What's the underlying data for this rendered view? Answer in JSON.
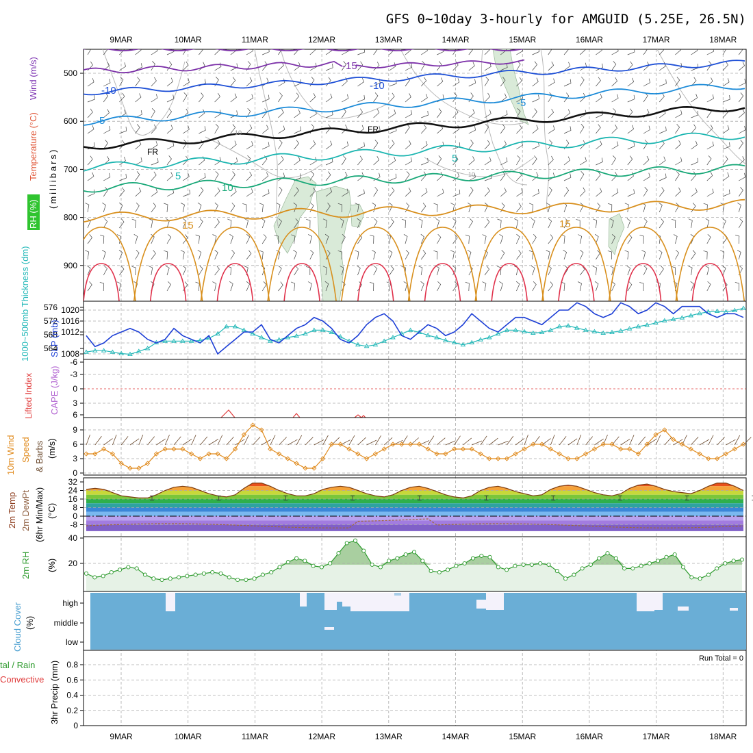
{
  "title": "GFS 0~10day 3-hourly for AMGUID (5.25E, 26.5N)",
  "dates": [
    "9MAR",
    "10MAR",
    "11MAR",
    "12MAR",
    "13MAR",
    "14MAR",
    "15MAR",
    "16MAR",
    "17MAR",
    "18MAR"
  ],
  "colors": {
    "slp": "#1d3fd6",
    "thickness": "#22b8b8",
    "lifted": "#e03a3a",
    "cape": "#b060d0",
    "wind": "#e08a1c",
    "rh2m": "#2c9a2c",
    "cloud": "#6aaed6",
    "cloud_gap": "#f4f2fb",
    "barbs": "#6b4a2e",
    "grid": "#aaaaaa"
  },
  "panels": {
    "upper": {
      "label_rh": "RH (%)",
      "label_temp": "Temperature (°C)",
      "label_wind": "Wind (m/s)",
      "label_mb": "(millibars)",
      "yticks": [
        "500",
        "600",
        "700",
        "800",
        "900"
      ],
      "contour_labels": [
        "-15",
        "-10",
        "-10",
        "-5",
        "-5",
        "FR",
        "FR",
        "5",
        "5",
        "10",
        "15",
        "15",
        "10",
        "10"
      ]
    },
    "slp": {
      "label_left": "1000~500mb Thickness (dm)",
      "label_right": "SLP (mb)",
      "left_ticks": [
        "576",
        "572",
        "568",
        "564"
      ],
      "right_ticks": [
        "1020",
        "1016",
        "1012",
        "1008"
      ]
    },
    "cape": {
      "label_left": "Lifted Index",
      "label_right": "CAPE (J/kg)",
      "ticks": [
        "-6",
        "-3",
        "0",
        "3",
        "6"
      ]
    },
    "wind10": {
      "label_title": "10m Wind",
      "label_speed": "Speed",
      "label_barbs": "& Barbs",
      "unit": "(m/s)",
      "ticks": [
        "9",
        "6",
        "3",
        "0"
      ]
    },
    "temp2m": {
      "label_temp": "2m Temp",
      "label_dew": "2m DewPt",
      "label_minmax": "(6hr Min/Max)",
      "unit": "(°C)",
      "ticks": [
        "32",
        "24",
        "16",
        "8",
        "0",
        "-8"
      ]
    },
    "rh2m": {
      "label": "2m RH",
      "unit": "(%)",
      "ticks": [
        "40",
        "20"
      ]
    },
    "cloud": {
      "label": "Cloud Cover",
      "unit": "(%)",
      "ticks": [
        "high",
        "middle",
        "low"
      ]
    },
    "precip": {
      "label_a": "tal / Rain",
      "label_b": "Convective",
      "label_c": "3hr Precip (mm)",
      "ticks": [
        "0.8",
        "0.6",
        "0.4",
        "0.2",
        "0"
      ],
      "run_total": "Run Total = 0"
    }
  },
  "chart_data": [
    {
      "type": "line",
      "title": "SLP (mb)",
      "series": [
        {
          "name": "SLP (mb)",
          "values": [
            1013,
            1010,
            1011,
            1013,
            1014,
            1015,
            1014,
            1012,
            1011,
            1012,
            1015,
            1013,
            1012,
            1011,
            1013,
            1008,
            1010,
            1012,
            1014,
            1014,
            1016,
            1012,
            1011,
            1013,
            1015,
            1016,
            1018,
            1017,
            1015,
            1012,
            1011,
            1013,
            1016,
            1018,
            1019,
            1017,
            1013,
            1012,
            1014,
            1016,
            1015,
            1013,
            1014,
            1016,
            1019,
            1017,
            1015,
            1014,
            1016,
            1018,
            1018,
            1017,
            1016,
            1018,
            1020,
            1020,
            1022,
            1021,
            1019,
            1018,
            1019,
            1022,
            1021,
            1019,
            1020,
            1022,
            1021,
            1019,
            1021,
            1021,
            1021,
            1019,
            1018,
            1019,
            1019,
            1018
          ]
        }
      ],
      "ylim": [
        1006,
        1022
      ]
    },
    {
      "type": "line",
      "title": "1000~500mb Thickness (dm)",
      "series": [
        {
          "name": "1000~500mb Thickness (dm)",
          "values": [
            563,
            563.4,
            563.4,
            563,
            562.6,
            562.4,
            563.2,
            564,
            565.6,
            566,
            566,
            566,
            566,
            566.2,
            566.8,
            568,
            570,
            570,
            569,
            568,
            567,
            566,
            566.4,
            567,
            567.4,
            568,
            569,
            569,
            568.4,
            567.2,
            566,
            565,
            564.6,
            565,
            566,
            567,
            568,
            569,
            568.4,
            567.6,
            567,
            566.2,
            565.6,
            565,
            565.6,
            566.4,
            567,
            568,
            569,
            569,
            568.6,
            568.2,
            568.4,
            569,
            570,
            570.2,
            569.6,
            569,
            568.6,
            568.2,
            568.4,
            568.8,
            569.4,
            570,
            570.4,
            571,
            571.6,
            572,
            572.4,
            573,
            573.6,
            574,
            574.2,
            574,
            574.4,
            575
          ]
        }
      ],
      "ylim": [
        562,
        578
      ]
    },
    {
      "type": "line",
      "title": "10m Wind Speed (m/s)",
      "series": [
        {
          "name": "10m Wind Speed (m/s)",
          "values": [
            4,
            4,
            5,
            4,
            2,
            1,
            1,
            2,
            4,
            5,
            5,
            5,
            4,
            3,
            4,
            4,
            3,
            5,
            8,
            10,
            9,
            5,
            4,
            3,
            2,
            1,
            1,
            3,
            6,
            6,
            5,
            4,
            3,
            4,
            5,
            6,
            6,
            6,
            6,
            5,
            4,
            4,
            5,
            5,
            5,
            4,
            3,
            3,
            3,
            4,
            5,
            6,
            6,
            5,
            4,
            3,
            3,
            4,
            5,
            6,
            6,
            5,
            5,
            4,
            6,
            8,
            9,
            7,
            6,
            5,
            4,
            3,
            3,
            4,
            5,
            6
          ]
        }
      ],
      "ylim": [
        0,
        10
      ]
    },
    {
      "type": "area",
      "title": "2m Temp (°C)",
      "series": [
        {
          "name": "2m Temp (°C)",
          "values": [
            25,
            26,
            25,
            22,
            19,
            18,
            17,
            17,
            20,
            24,
            27,
            28,
            27,
            24,
            21,
            19,
            18,
            20,
            26,
            31,
            31,
            28,
            24,
            21,
            19,
            19,
            21,
            25,
            27,
            28,
            27,
            24,
            21,
            19,
            18,
            20,
            24,
            27,
            28,
            26,
            23,
            20,
            18,
            17,
            19,
            24,
            27,
            28,
            26,
            23,
            21,
            19,
            20,
            25,
            28,
            29,
            28,
            25,
            22,
            20,
            19,
            21,
            26,
            29,
            30,
            28,
            25,
            23,
            22,
            21,
            24,
            28,
            31,
            31,
            28,
            24
          ]
        }
      ],
      "ylim": [
        -14,
        35
      ]
    },
    {
      "type": "area",
      "title": "2m RH (%)",
      "series": [
        {
          "name": "2m RH (%)",
          "values": [
            12,
            9,
            10,
            13,
            15,
            17,
            16,
            11,
            8,
            7,
            8,
            9,
            10,
            11,
            12,
            13,
            12,
            9,
            7,
            7,
            8,
            11,
            13,
            17,
            21,
            24,
            22,
            18,
            17,
            20,
            28,
            36,
            38,
            30,
            19,
            17,
            22,
            24,
            27,
            29,
            22,
            14,
            13,
            15,
            18,
            20,
            24,
            26,
            25,
            17,
            15,
            18,
            19,
            19,
            20,
            19,
            14,
            8,
            11,
            16,
            19,
            24,
            28,
            24,
            16,
            16,
            18,
            20,
            22,
            25,
            27,
            17,
            9,
            8,
            11,
            16,
            20,
            22,
            23
          ]
        }
      ],
      "ylim": [
        0,
        40
      ]
    }
  ]
}
